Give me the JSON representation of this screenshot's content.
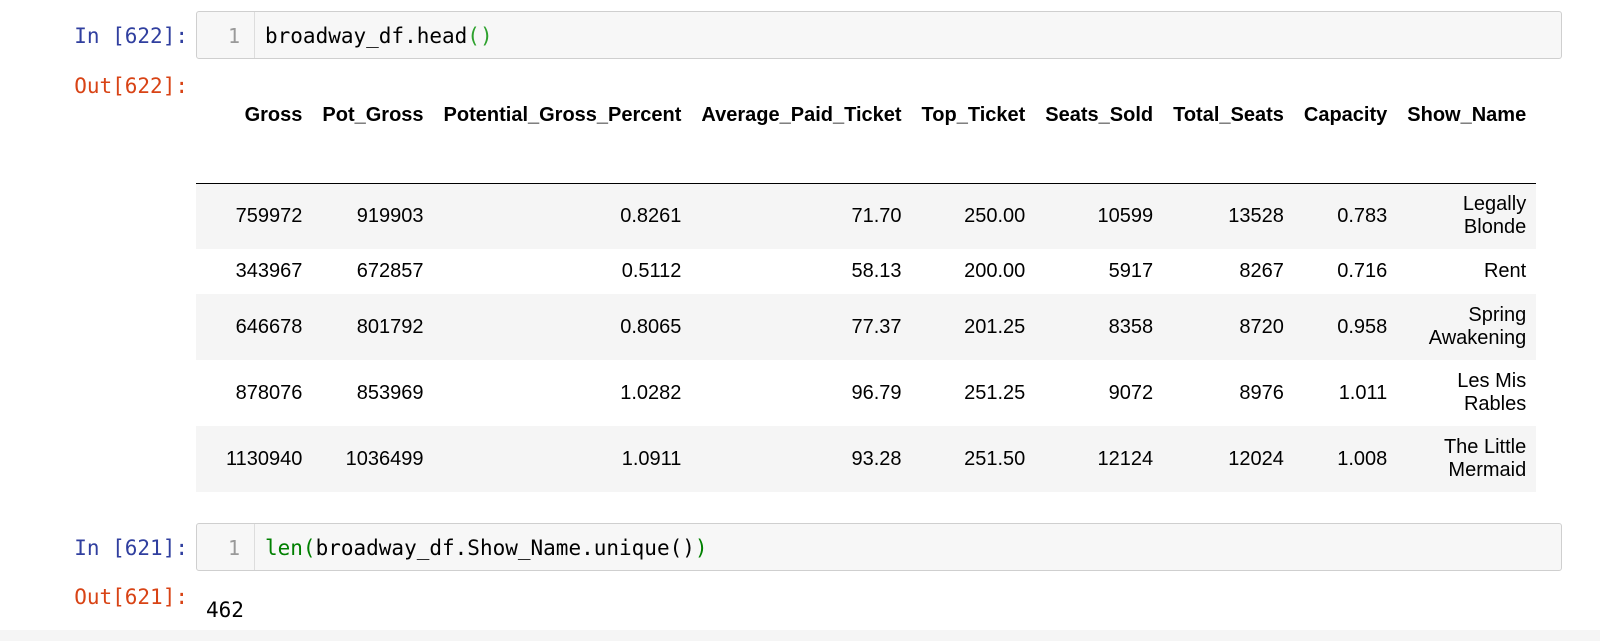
{
  "cell1": {
    "in_prompt": "In [622]:",
    "line_number": "1",
    "code_text": "broadway_df.head",
    "code_parens": "()",
    "out_prompt": "Out[622]:"
  },
  "table": {
    "columns": [
      "Gross",
      "Pot_Gross",
      "Potential_Gross_Percent",
      "Average_Paid_Ticket",
      "Top_Ticket",
      "Seats_Sold",
      "Total_Seats",
      "Capacity",
      "Show_Name"
    ],
    "rows": [
      [
        "759972",
        "919903",
        "0.8261",
        "71.70",
        "250.00",
        "10599",
        "13528",
        "0.783",
        "Legally Blonde"
      ],
      [
        "343967",
        "672857",
        "0.5112",
        "58.13",
        "200.00",
        "5917",
        "8267",
        "0.716",
        "Rent"
      ],
      [
        "646678",
        "801792",
        "0.8065",
        "77.37",
        "201.25",
        "8358",
        "8720",
        "0.958",
        "Spring Awakening"
      ],
      [
        "878076",
        "853969",
        "1.0282",
        "96.79",
        "251.25",
        "9072",
        "8976",
        "1.011",
        "Les Mis Rables"
      ],
      [
        "1130940",
        "1036499",
        "1.0911",
        "93.28",
        "251.50",
        "12124",
        "12024",
        "1.008",
        "The Little Mermaid"
      ]
    ]
  },
  "cell2": {
    "in_prompt": "In [621]:",
    "line_number": "1",
    "code_fn": "len(",
    "code_mid": "broadway_df.Show_Name.unique()",
    "code_close": ")",
    "out_prompt": "Out[621]:",
    "output_value": "462"
  }
}
